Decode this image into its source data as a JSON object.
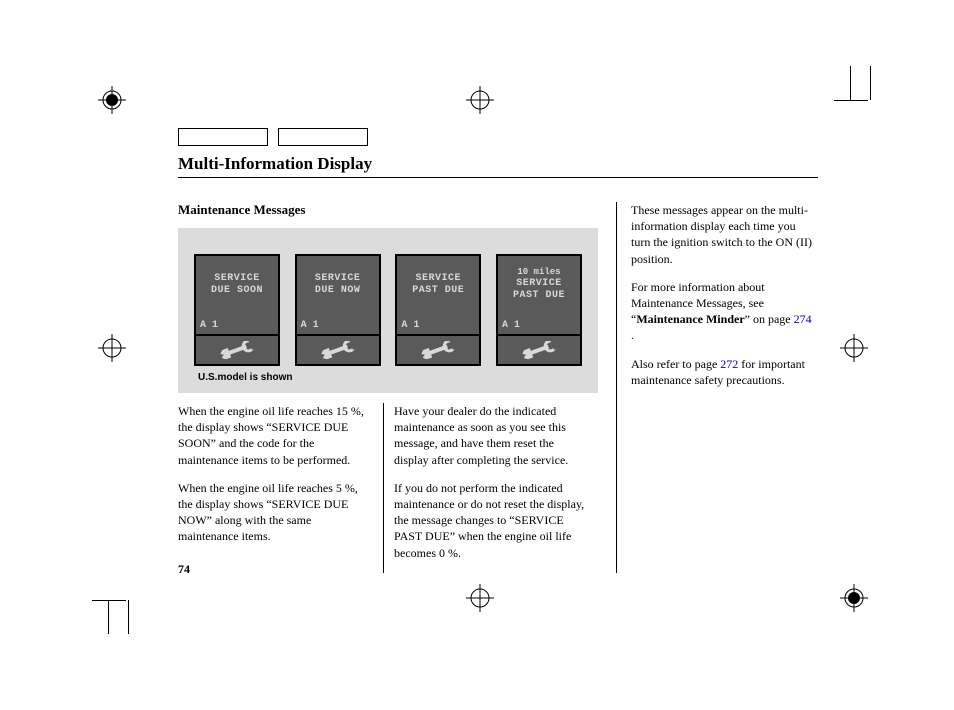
{
  "heading": "Multi-Information Display",
  "sub_heading": "Maintenance Messages",
  "screens": [
    {
      "top": "",
      "l1": "SERVICE",
      "l2": "DUE SOON",
      "code": "A 1"
    },
    {
      "top": "",
      "l1": "SERVICE",
      "l2": "DUE NOW",
      "code": "A 1"
    },
    {
      "top": "",
      "l1": "SERVICE",
      "l2": "PAST DUE",
      "code": "A 1"
    },
    {
      "top": "10 miles",
      "l1": "SERVICE",
      "l2": "PAST DUE",
      "code": "A 1"
    }
  ],
  "caption": "U.S.model is shown",
  "col1": {
    "p1": "When the engine oil life reaches 15 %, the display shows “SERVICE DUE SOON” and the code for the maintenance items to be performed.",
    "p2": "When the engine oil life reaches 5 %, the display shows “SERVICE DUE NOW” along with the same maintenance items."
  },
  "col2": {
    "p1": "Have your dealer do the indicated maintenance as soon as you see this message, and have them reset the display after completing the service.",
    "p2": "If you do not perform the indicated maintenance or do not reset the display, the message changes to “SERVICE PAST DUE” when the engine oil life becomes 0 %."
  },
  "right": {
    "p1": "These messages appear on the multi-information display each time you turn the ignition switch to the ON (II) position.",
    "p2a": "For more information about Maintenance Messages, see “",
    "p2b": "Maintenance Minder",
    "p2c": "” on page ",
    "link1": "274",
    "p2d": " .",
    "p3a": "Also refer to page ",
    "link2": "272",
    "p3b": " for important maintenance safety precautions."
  },
  "page_number": "74",
  "colors": {
    "screen_bg": "#5a5a5a",
    "screen_text": "#d8d8d8",
    "container_bg": "#dcdcdc",
    "link": "#0000cc"
  }
}
